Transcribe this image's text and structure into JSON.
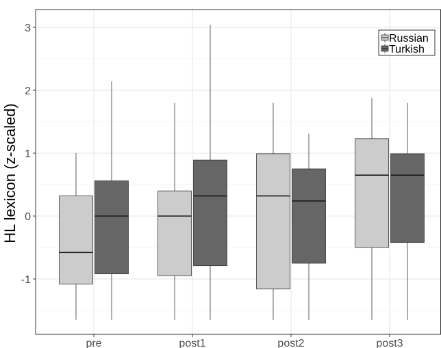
{
  "chart_data": {
    "type": "boxplot",
    "title": "",
    "xlabel": "",
    "ylabel": "HL lexicon (z-scaled)",
    "categories": [
      "pre",
      "post1",
      "post2",
      "post3"
    ],
    "ylim": [
      -1.9,
      3.3
    ],
    "yticks": [
      3,
      2,
      1,
      0,
      -1
    ],
    "ytick_labels": [
      "3",
      "2",
      "1",
      "0",
      "-1"
    ],
    "grid": true,
    "legend": {
      "placement": "top-right"
    },
    "series": [
      {
        "name": "Russian",
        "color": "#cccccc",
        "boxes": [
          {
            "min": -1.65,
            "q1": -1.08,
            "median": -0.58,
            "q3": 0.32,
            "max": 1.0
          },
          {
            "min": -1.65,
            "q1": -0.95,
            "median": 0.0,
            "q3": 0.4,
            "max": 1.8
          },
          {
            "min": -1.65,
            "q1": -1.16,
            "median": 0.32,
            "q3": 0.99,
            "max": 1.8
          },
          {
            "min": -1.65,
            "q1": -0.5,
            "median": 0.65,
            "q3": 1.23,
            "max": 1.88
          }
        ]
      },
      {
        "name": "Turkish",
        "color": "#666666",
        "boxes": [
          {
            "min": -1.65,
            "q1": -0.92,
            "median": 0.0,
            "q3": 0.56,
            "max": 2.14
          },
          {
            "min": -1.65,
            "q1": -0.79,
            "median": 0.32,
            "q3": 0.89,
            "max": 3.04
          },
          {
            "min": -1.65,
            "q1": -0.75,
            "median": 0.24,
            "q3": 0.75,
            "max": 1.31
          },
          {
            "min": -1.65,
            "q1": -0.42,
            "median": 0.65,
            "q3": 0.99,
            "max": 1.8
          }
        ]
      }
    ]
  }
}
